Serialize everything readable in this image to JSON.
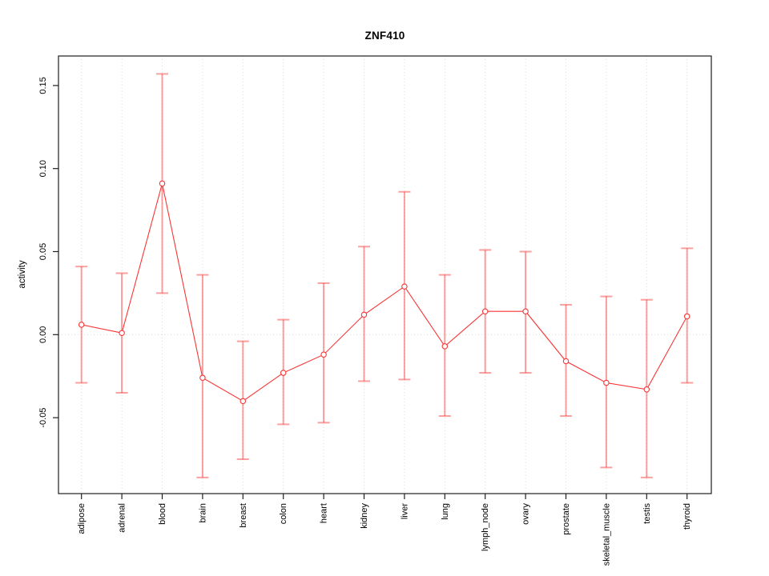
{
  "window": {
    "background": "#ffffff"
  },
  "colors": {
    "series_line": "#f93535",
    "marker_stroke": "#f93535",
    "marker_fill": "#ffffff",
    "error_bar": "rgba(250,70,70,0.52)",
    "gridline": "#d8d8d8",
    "axis": "#1f1f1f",
    "tick_label": "#000000",
    "title": "#000000"
  },
  "chart_data": {
    "type": "line",
    "title": "ZNF410",
    "xlabel": "",
    "ylabel": "activity",
    "legend": "none",
    "grid": "dotted vertical line at each category; dotted horizontal line at y=0",
    "marker": "open-circle",
    "error_bars": true,
    "ylim": [
      -0.096,
      0.168
    ],
    "yticks": [
      -0.05,
      0.0,
      0.05,
      0.1,
      0.15
    ],
    "ytick_labels": [
      "-0.05",
      "0.00",
      "0.05",
      "0.10",
      "0.15"
    ],
    "categories": [
      "adipose",
      "adrenal",
      "blood",
      "brain",
      "breast",
      "colon",
      "heart",
      "kidney",
      "liver",
      "lung",
      "lymph_node",
      "ovary",
      "prostate",
      "skeletal_muscle",
      "testis",
      "thyroid"
    ],
    "series": [
      {
        "name": "activity",
        "values": [
          0.006,
          0.001,
          0.091,
          -0.026,
          -0.04,
          -0.023,
          -0.012,
          0.012,
          0.029,
          -0.007,
          0.014,
          0.014,
          -0.016,
          -0.029,
          -0.033,
          0.011
        ],
        "upper": [
          0.041,
          0.037,
          0.157,
          0.036,
          -0.004,
          0.009,
          0.031,
          0.053,
          0.086,
          0.036,
          0.051,
          0.05,
          0.018,
          0.023,
          0.021,
          0.052
        ],
        "lower": [
          -0.029,
          -0.035,
          0.025,
          -0.086,
          -0.075,
          -0.054,
          -0.053,
          -0.028,
          -0.027,
          -0.049,
          -0.023,
          -0.023,
          -0.049,
          -0.08,
          -0.086,
          -0.029
        ]
      }
    ]
  }
}
